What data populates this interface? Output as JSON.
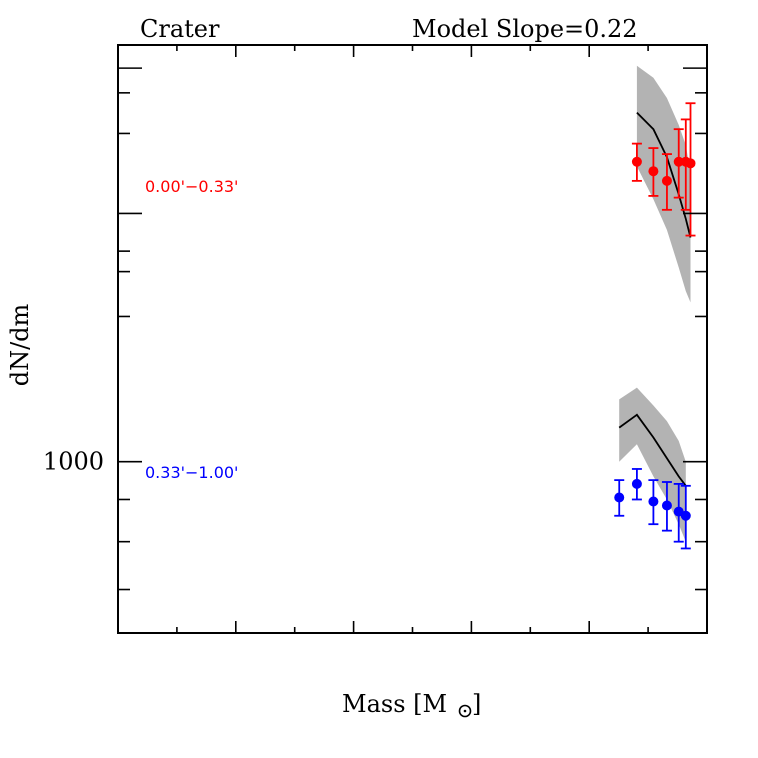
{
  "chart_data": {
    "type": "scatter",
    "title_left": "Crater",
    "title_right": "Model Slope=0.22",
    "xlabel_text": "Mass [M",
    "xlabel_close": "]",
    "ylabel": "dN/dm",
    "y_scale": "log",
    "xlim": [
      0.0,
      1.0
    ],
    "ylim": [
      620,
      3200
    ],
    "x_ticks_major": [
      0.2,
      0.4,
      0.6,
      0.8,
      1.0
    ],
    "x_ticks_minor": [
      0.1,
      0.3,
      0.5,
      0.7,
      0.9
    ],
    "y_tick_labels": [
      {
        "value": 1000,
        "label": "1000"
      }
    ],
    "y_ticks_major": [
      1000,
      2000,
      3000
    ],
    "y_ticks_minor": [
      700,
      800,
      900,
      1500,
      1700,
      1800,
      2500,
      2800
    ],
    "colors": {
      "inner": "#ff0000",
      "outer": "#0000ff",
      "band": "#b3b3b3",
      "model": "#000000"
    },
    "series": [
      {
        "key": "inner",
        "name": "0.00'−0.33'",
        "color": "#ff0000",
        "points": [
          {
            "x": 0.881,
            "y": 2310,
            "err": 120
          },
          {
            "x": 0.909,
            "y": 2250,
            "err": 150
          },
          {
            "x": 0.932,
            "y": 2190,
            "err": 170
          },
          {
            "x": 0.952,
            "y": 2310,
            "err": 220
          },
          {
            "x": 0.964,
            "y": 2310,
            "err": 290
          },
          {
            "x": 0.972,
            "y": 2300,
            "err": 420
          }
        ],
        "model_line": [
          {
            "x": 0.881,
            "y": 2650
          },
          {
            "x": 0.909,
            "y": 2530
          },
          {
            "x": 0.932,
            "y": 2340
          },
          {
            "x": 0.952,
            "y": 2110
          },
          {
            "x": 0.964,
            "y": 1970
          },
          {
            "x": 0.972,
            "y": 1870
          }
        ],
        "model_band": [
          {
            "x": 0.881,
            "lo": 2280,
            "hi": 3020
          },
          {
            "x": 0.909,
            "lo": 2080,
            "hi": 2920
          },
          {
            "x": 0.932,
            "lo": 1910,
            "hi": 2760
          },
          {
            "x": 0.952,
            "lo": 1720,
            "hi": 2560
          },
          {
            "x": 0.964,
            "lo": 1610,
            "hi": 2420
          },
          {
            "x": 0.972,
            "lo": 1560,
            "hi": 2240
          }
        ]
      },
      {
        "key": "outer",
        "name": "0.33'−1.00'",
        "color": "#0000ff",
        "points": [
          {
            "x": 0.851,
            "y": 905,
            "err": 45
          },
          {
            "x": 0.881,
            "y": 940,
            "err": 40
          },
          {
            "x": 0.909,
            "y": 895,
            "err": 55
          },
          {
            "x": 0.932,
            "y": 885,
            "err": 60
          },
          {
            "x": 0.952,
            "y": 870,
            "err": 70
          },
          {
            "x": 0.964,
            "y": 860,
            "err": 75
          }
        ],
        "model_line": [
          {
            "x": 0.851,
            "y": 1100
          },
          {
            "x": 0.881,
            "y": 1140
          },
          {
            "x": 0.909,
            "y": 1070
          },
          {
            "x": 0.932,
            "y": 1010
          },
          {
            "x": 0.952,
            "y": 960
          },
          {
            "x": 0.964,
            "y": 935
          }
        ],
        "model_band": [
          {
            "x": 0.851,
            "lo": 1000,
            "hi": 1190
          },
          {
            "x": 0.881,
            "lo": 1050,
            "hi": 1230
          },
          {
            "x": 0.909,
            "lo": 960,
            "hi": 1170
          },
          {
            "x": 0.932,
            "lo": 900,
            "hi": 1120
          },
          {
            "x": 0.952,
            "lo": 840,
            "hi": 1060
          },
          {
            "x": 0.964,
            "lo": 800,
            "hi": 1000
          }
        ]
      }
    ]
  }
}
